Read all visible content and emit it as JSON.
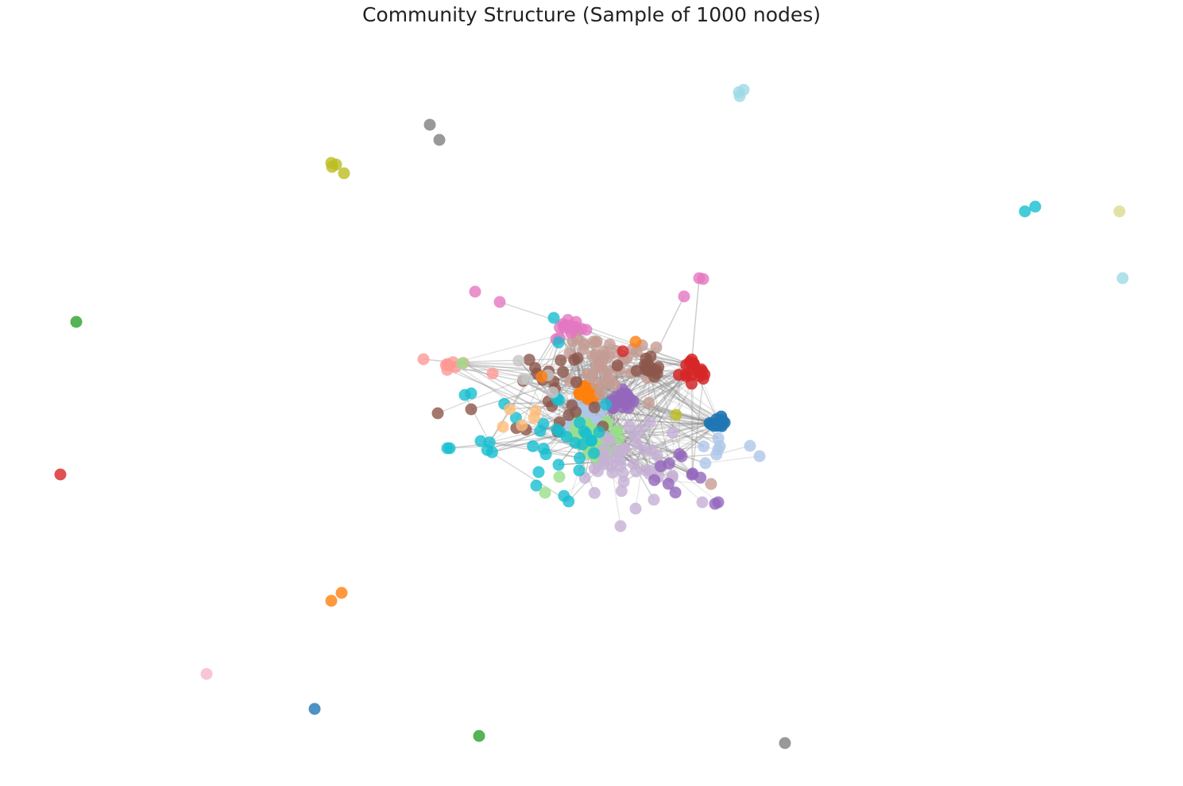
{
  "title": "Community Structure (Sample of 1000 nodes)",
  "palette": [
    "#1f77b4",
    "#aec7e8",
    "#ff7f0e",
    "#ffbb78",
    "#2ca02c",
    "#98df8a",
    "#d62728",
    "#ff9896",
    "#9467bd",
    "#c5b0d5",
    "#8c564b",
    "#c49c94",
    "#e377c2",
    "#f7b6d2",
    "#7f7f7f",
    "#c7c7c7",
    "#bcbd22",
    "#dbdb8d",
    "#17becf",
    "#9edae5"
  ]
}
